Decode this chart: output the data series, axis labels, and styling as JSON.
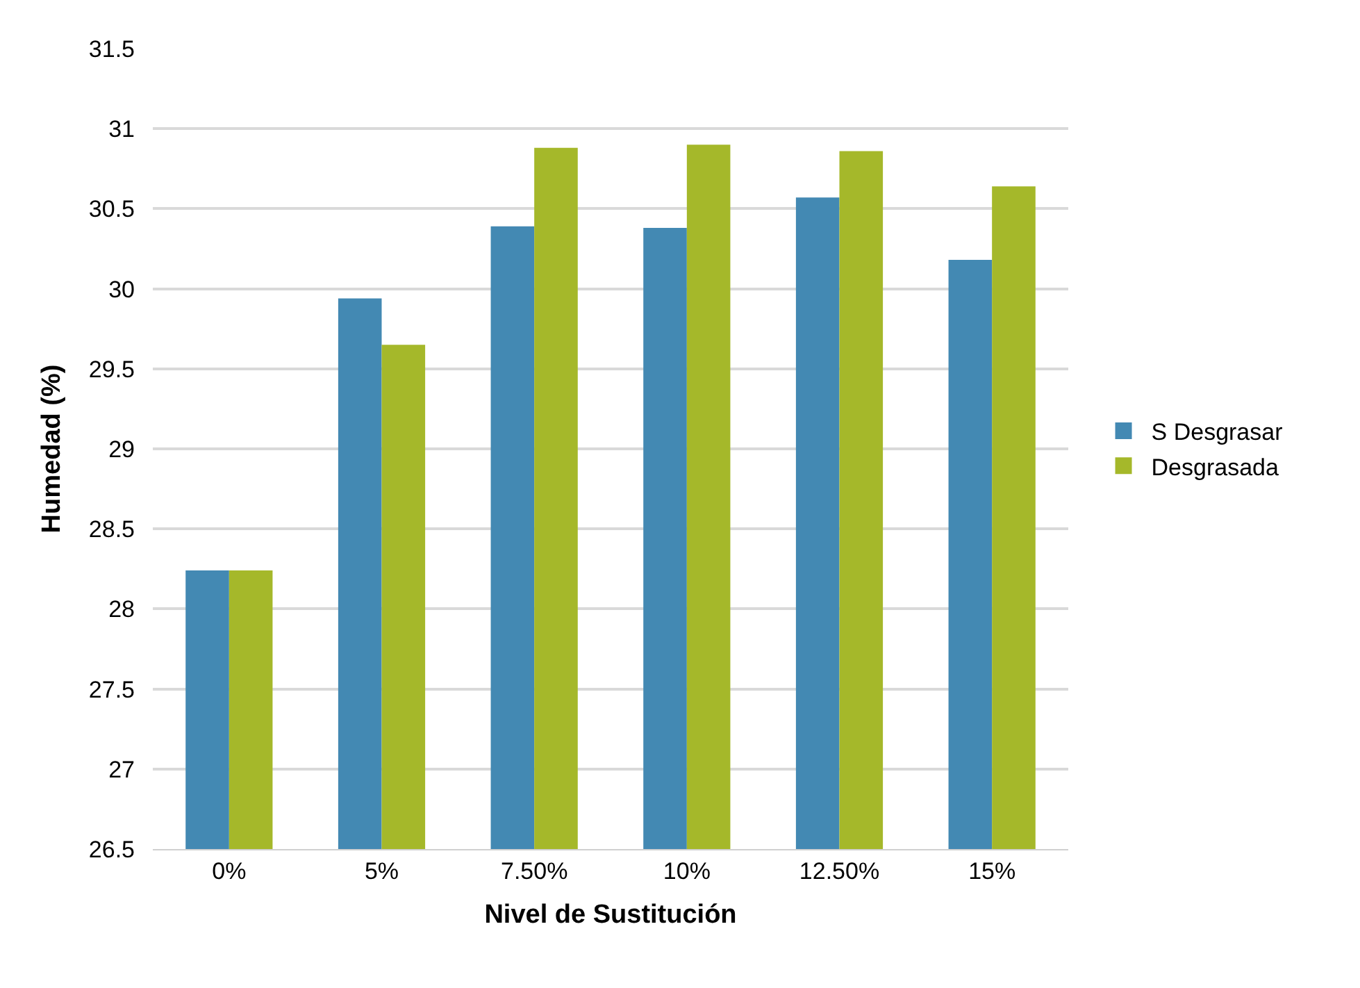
{
  "chart_data": {
    "type": "bar",
    "xlabel": "Nivel de Sustitución",
    "ylabel": "Humedad (%)",
    "categories": [
      "0%",
      "5%",
      "7.50%",
      "10%",
      "12.50%",
      "15%"
    ],
    "series": [
      {
        "name": "S Desgrasar",
        "color": "#4389b3",
        "values": [
          28.24,
          29.94,
          30.39,
          30.38,
          30.57,
          30.18
        ]
      },
      {
        "name": "Desgrasada",
        "color": "#a5b82a",
        "values": [
          28.24,
          29.65,
          30.88,
          30.9,
          30.86,
          30.64
        ]
      }
    ],
    "ylim": [
      26.5,
      31.5
    ],
    "yticks": [
      {
        "value": 26.5,
        "label": "26.5"
      },
      {
        "value": 27,
        "label": "27"
      },
      {
        "value": 27.5,
        "label": "27.5"
      },
      {
        "value": 28,
        "label": "28"
      },
      {
        "value": 28.5,
        "label": "28.5"
      },
      {
        "value": 29,
        "label": "29"
      },
      {
        "value": 29.5,
        "label": "29.5"
      },
      {
        "value": 30,
        "label": "30"
      },
      {
        "value": 30.5,
        "label": "30.5"
      },
      {
        "value": 31,
        "label": "31"
      },
      {
        "value": 31.5,
        "label": "31.5"
      }
    ],
    "grid": "y",
    "legend": "right"
  }
}
